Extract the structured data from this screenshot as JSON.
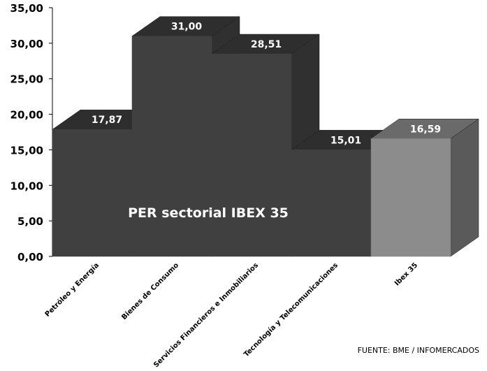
{
  "chart_data": {
    "type": "bar",
    "title": "PER sectorial IBEX 35",
    "categories": [
      "Petróleo y Energía",
      "Bienes de Consumo",
      "Servicios Financieros  e Inmobiliarios",
      "Tecnología  y Telecomunicaciones",
      "Ibex 35"
    ],
    "values": [
      17.87,
      31.0,
      28.51,
      15.01,
      16.59
    ],
    "value_labels": [
      "17,87",
      "31,00",
      "28,51",
      "15,01",
      "16,59"
    ],
    "yticks": [
      "0,00",
      "5,00",
      "10,00",
      "15,00",
      "20,00",
      "25,00",
      "30,00",
      "35,00"
    ],
    "ylim": [
      0,
      35
    ],
    "xlabel": "",
    "ylabel": "",
    "grid": false,
    "three_d": true,
    "colors": {
      "sector_bar": "#404040",
      "sector_top": "#2e2e2e",
      "sector_side": "#303030",
      "index_bar": "#8c8c8c",
      "index_top": "#6a6a6a",
      "index_side": "#5a5a5a"
    }
  },
  "source": "FUENTE: BME / INFOMERCADOS"
}
